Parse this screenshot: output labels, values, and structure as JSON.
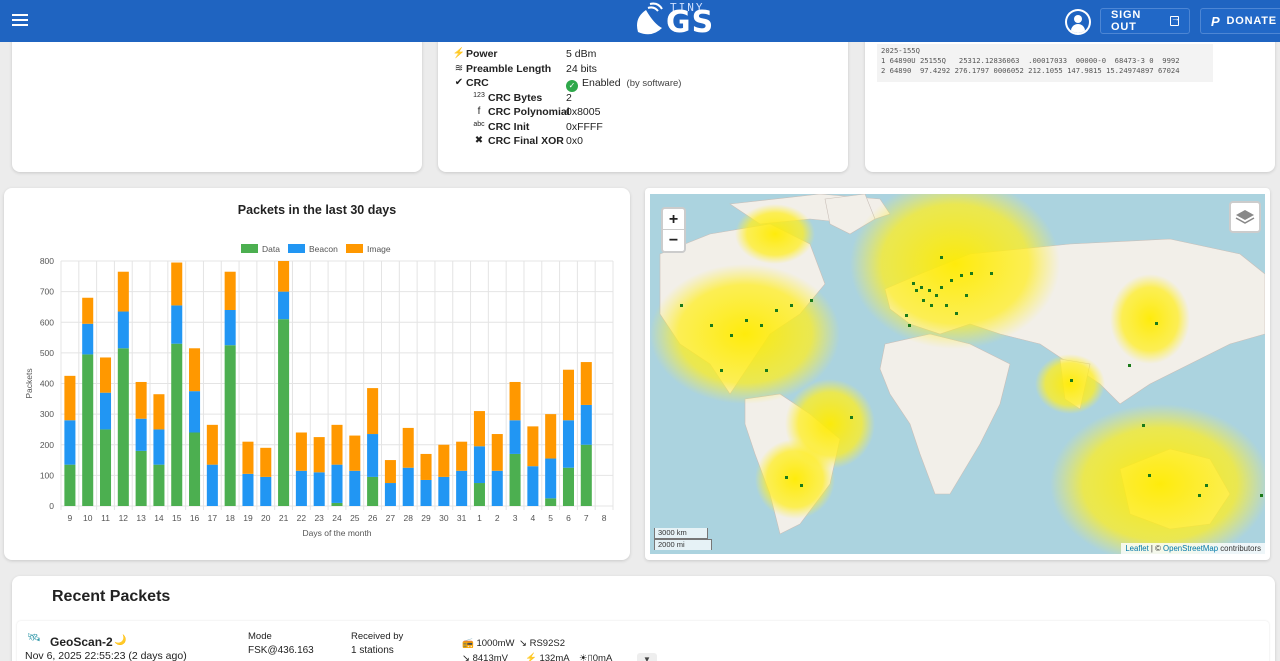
{
  "header": {
    "logo_small": "TINY",
    "logo_big": "GS",
    "signout_label": "SIGN OUT",
    "donate_label": "DONATE"
  },
  "lora": {
    "rows": [
      {
        "icon": "bolt-icon",
        "label": "Power",
        "value": "5 dBm"
      },
      {
        "icon": "signal-icon",
        "label": "Preamble Length",
        "value": "24 bits"
      },
      {
        "icon": "verified-icon",
        "label": "CRC",
        "value": "Enabled",
        "note": "(by software)"
      },
      {
        "icon": "number-icon",
        "label": "CRC Bytes",
        "value": "2"
      },
      {
        "icon": "function-icon",
        "label": "CRC Polynomial",
        "value": "0x8005"
      },
      {
        "icon": "abc-icon",
        "label": "CRC Init",
        "value": "0xFFFF"
      },
      {
        "icon": "xbox-icon",
        "label": "CRC Final XOR",
        "value": "0x0"
      }
    ]
  },
  "tle": {
    "line0": "2025-155Q",
    "line1": "1 64890U 25155Q   25312.12836063  .00017033  00000-0  68473-3 0  9992",
    "line2": "2 64890  97.4292 276.1797 0006052 212.1055 147.9815 15.24974897 67024"
  },
  "chart_data": {
    "type": "bar",
    "title": "Packets in the last 30 days",
    "xlabel": "Days of the month",
    "ylabel": "Packets",
    "ylim": [
      0,
      800
    ],
    "yticks": [
      0,
      100,
      200,
      300,
      400,
      500,
      600,
      700,
      800
    ],
    "stacked": true,
    "legend_position": "top",
    "categories": [
      "9",
      "10",
      "11",
      "12",
      "13",
      "14",
      "15",
      "16",
      "17",
      "18",
      "19",
      "20",
      "21",
      "22",
      "23",
      "24",
      "25",
      "26",
      "27",
      "28",
      "29",
      "30",
      "31",
      "1",
      "2",
      "3",
      "4",
      "5",
      "6",
      "7",
      "8"
    ],
    "series": [
      {
        "name": "Data",
        "color": "#4caf50",
        "values": [
          135,
          495,
          250,
          515,
          180,
          135,
          530,
          240,
          0,
          525,
          0,
          0,
          610,
          0,
          0,
          10,
          0,
          95,
          0,
          0,
          0,
          0,
          0,
          75,
          0,
          170,
          0,
          25,
          125,
          200,
          0
        ]
      },
      {
        "name": "Beacon",
        "color": "#2196f3",
        "values": [
          145,
          100,
          120,
          120,
          105,
          115,
          125,
          135,
          135,
          115,
          105,
          95,
          90,
          115,
          110,
          125,
          115,
          140,
          75,
          125,
          85,
          95,
          115,
          120,
          115,
          110,
          130,
          130,
          155,
          130,
          0
        ]
      },
      {
        "name": "Image",
        "color": "#ff9800",
        "values": [
          145,
          85,
          115,
          130,
          120,
          115,
          140,
          140,
          130,
          125,
          105,
          95,
          100,
          125,
          115,
          130,
          115,
          150,
          75,
          130,
          85,
          105,
          95,
          115,
          120,
          125,
          130,
          145,
          165,
          140,
          0
        ]
      }
    ]
  },
  "map": {
    "zoom_in": "+",
    "zoom_out": "−",
    "scale_km": "3000 km",
    "scale_mi": "2000 mi",
    "attrib_leaflet": "Leaflet",
    "attrib_sep": " | © ",
    "attrib_osm": "OpenStreetMap",
    "attrib_tail": " contributors"
  },
  "recent": {
    "title": "Recent Packets",
    "packet": {
      "name": "GeoScan-2",
      "datetime": "Nov 6, 2025 22:55:23 (2 days ago)",
      "mode_label": "Mode",
      "mode_value": "FSK@436.163",
      "received_label": "Received by",
      "received_value": "1 stations",
      "tele_power": "1000mW",
      "tele_model": "RS92S2",
      "tele_voltage": "8413mV",
      "tele_current": "132mA",
      "tele_solar": "0mA"
    }
  }
}
